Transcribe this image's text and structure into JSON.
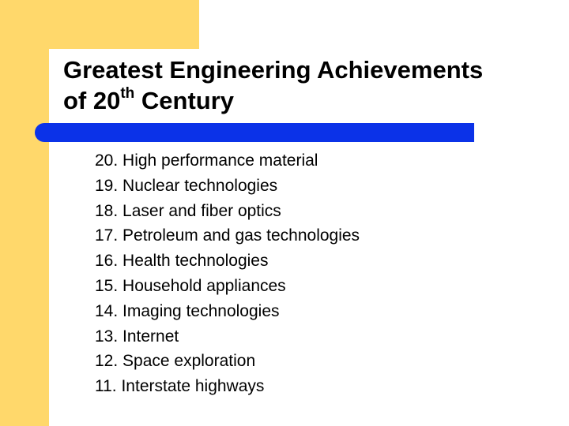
{
  "slide": {
    "title_line1": "Greatest Engineering Achievements",
    "title_line2_prefix": "of 20",
    "title_superscript": "th",
    "title_line2_suffix": " Century",
    "items": [
      "20. High performance material",
      "19. Nuclear technologies",
      "18. Laser and fiber optics",
      "17. Petroleum and gas technologies",
      "16. Health technologies",
      "15. Household appliances",
      "14. Imaging technologies",
      "13. Internet",
      "12. Space exploration",
      "11. Interstate highways"
    ]
  },
  "theme": {
    "accent_band_color": "#ffd86b",
    "divider_color": "#0b32e8",
    "text_color": "#000000",
    "background_color": "#ffffff"
  }
}
